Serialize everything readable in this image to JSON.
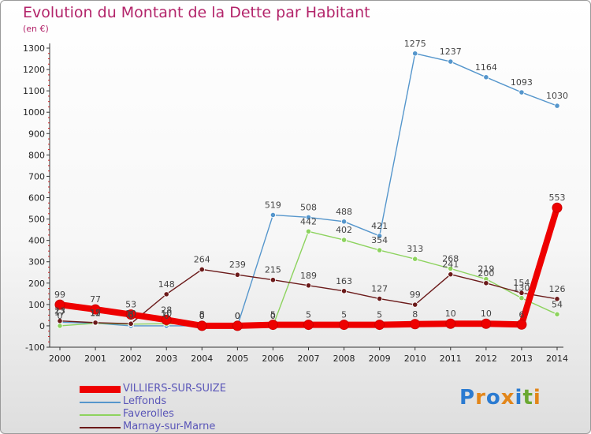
{
  "header": {
    "title": "Evolution du Montant de la Dette par Habitant",
    "subtitle": "(en €)"
  },
  "logo": {
    "letters": [
      "P",
      "r",
      "o",
      "x",
      "i",
      "t",
      "i"
    ],
    "colors": [
      "#2b7bd1",
      "#e2861a",
      "#2b7bd1",
      "#e2861a",
      "#2b7bd1",
      "#6aa832",
      "#e2861a"
    ]
  },
  "chart_data": {
    "type": "line",
    "x": [
      2000,
      2001,
      2002,
      2003,
      2004,
      2005,
      2006,
      2007,
      2008,
      2009,
      2010,
      2011,
      2012,
      2013,
      2014
    ],
    "x_tick_labels": [
      "2000",
      "2001",
      "2002",
      "2003",
      "2004",
      "2005",
      "2006",
      "2007",
      "2008",
      "2009",
      "2010",
      "2011",
      "2012",
      "2013",
      "2014"
    ],
    "ylim": [
      -100,
      1300
    ],
    "y_ticks": [
      -100,
      0,
      100,
      200,
      300,
      400,
      500,
      600,
      700,
      800,
      900,
      1000,
      1100,
      1200,
      1300
    ],
    "y_tick_labels": [
      "-100",
      "0",
      "100",
      "200",
      "300",
      "400",
      "500",
      "600",
      "700",
      "800",
      "900",
      "1000",
      "1100",
      "1200",
      "1300"
    ],
    "grid": false,
    "legend_position": "bottom-left",
    "series": [
      {
        "name": "VILLIERS-SUR-SUIZE",
        "color": "#ee0000",
        "emphasis": true,
        "values": [
          99,
          77,
          53,
          28,
          0,
          0,
          5,
          5,
          5,
          5,
          8,
          10,
          10,
          6,
          553
        ],
        "labels": [
          "99",
          "77",
          "53",
          "28",
          "0",
          "0",
          "5",
          "5",
          "5",
          "5",
          "8",
          "10",
          "10",
          "6",
          "553"
        ]
      },
      {
        "name": "Leffonds",
        "color": "#5596cc",
        "values": [
          17,
          12,
          0,
          0,
          0,
          0,
          519,
          508,
          488,
          421,
          1275,
          1237,
          1164,
          1093,
          1030
        ],
        "labels": [
          "17",
          "12",
          "0",
          "0",
          "0",
          "0",
          "519",
          "508",
          "488",
          "421",
          "1275",
          "1237",
          "1164",
          "1093",
          "1030"
        ]
      },
      {
        "name": "Faverolles",
        "color": "#8dd35e",
        "values": [
          0,
          12,
          8,
          10,
          8,
          0,
          0,
          442,
          402,
          354,
          313,
          268,
          219,
          130,
          54
        ],
        "labels": [
          "0",
          "12",
          "8",
          "10",
          "8",
          "0",
          "0",
          "442",
          "402",
          "354",
          "313",
          "268",
          "219",
          "130",
          "54"
        ]
      },
      {
        "name": "Marnay-sur-Marne",
        "color": "#6b1a1a",
        "values": [
          23,
          15,
          10,
          148,
          264,
          239,
          215,
          189,
          163,
          127,
          99,
          241,
          200,
          154,
          126
        ],
        "labels": [
          "23",
          "15",
          "10",
          "148",
          "264",
          "239",
          "215",
          "189",
          "163",
          "127",
          "99",
          "241",
          "200",
          "154",
          "126"
        ]
      }
    ]
  },
  "legend": {
    "items": [
      {
        "label": "VILLIERS-SUR-SUIZE",
        "color": "#ee0000",
        "thick": true
      },
      {
        "label": "Leffonds",
        "color": "#5596cc",
        "thick": false
      },
      {
        "label": "Faverolles",
        "color": "#8dd35e",
        "thick": false
      },
      {
        "label": "Marnay-sur-Marne",
        "color": "#6b1a1a",
        "thick": false
      }
    ]
  }
}
